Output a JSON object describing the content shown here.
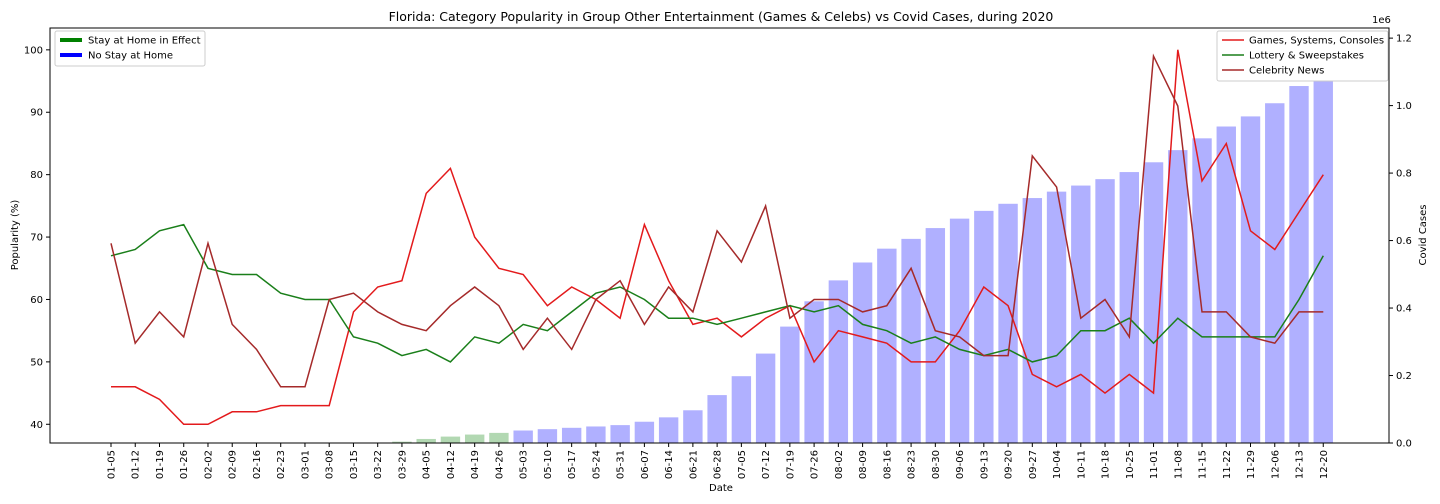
{
  "chart_data": {
    "type": "line",
    "title": "Florida: Category Popularity in Group Other Entertainment (Games & Celebs) vs Covid Cases, during 2020",
    "xlabel": "Date",
    "ylabel": "Popularity (%)",
    "y2label": "Covid Cases",
    "y2_multiplier": "1e6",
    "ylim": [
      37,
      103.5
    ],
    "y2lim": [
      0,
      1.23
    ],
    "yticks": [
      40,
      50,
      60,
      70,
      80,
      90,
      100
    ],
    "y2ticks": [
      "0.0",
      "0.2",
      "0.4",
      "0.6",
      "0.8",
      "1.0",
      "1.2"
    ],
    "categories": [
      "01-05",
      "01-12",
      "01-19",
      "01-26",
      "02-02",
      "02-09",
      "02-16",
      "02-23",
      "03-01",
      "03-08",
      "03-15",
      "03-22",
      "03-29",
      "04-05",
      "04-12",
      "04-19",
      "04-26",
      "05-03",
      "05-10",
      "05-17",
      "05-24",
      "05-31",
      "06-07",
      "06-14",
      "06-21",
      "06-28",
      "07-05",
      "07-12",
      "07-19",
      "07-26",
      "08-02",
      "08-09",
      "08-16",
      "08-23",
      "08-30",
      "09-06",
      "09-13",
      "09-20",
      "09-27",
      "10-04",
      "10-11",
      "10-18",
      "10-25",
      "11-01",
      "11-08",
      "11-15",
      "11-22",
      "11-29",
      "12-06",
      "12-13",
      "12-20"
    ],
    "bars": {
      "name": "Covid Cases",
      "axis": "right",
      "values": [
        0,
        0,
        0,
        0,
        0,
        0,
        0,
        0,
        0,
        0,
        0,
        0.001,
        0.004,
        0.012,
        0.019,
        0.025,
        0.03,
        0.037,
        0.041,
        0.045,
        0.049,
        0.053,
        0.063,
        0.076,
        0.097,
        0.142,
        0.198,
        0.265,
        0.345,
        0.42,
        0.482,
        0.535,
        0.576,
        0.605,
        0.637,
        0.665,
        0.688,
        0.709,
        0.726,
        0.745,
        0.763,
        0.782,
        0.803,
        0.832,
        0.868,
        0.903,
        0.938,
        0.968,
        1.007,
        1.058,
        1.175
      ],
      "colors": {
        "stay_at_home": "#b2d8b2",
        "no_stay_at_home": "#b0b0ff"
      },
      "stay_at_home_categories": [
        "03-29",
        "04-05",
        "04-12",
        "04-19",
        "04-26"
      ]
    },
    "series": [
      {
        "name": "Games, Systems, Consoles",
        "color": "#e31a1c",
        "values": [
          46,
          46,
          44,
          40,
          40,
          42,
          42,
          43,
          43,
          43,
          58,
          62,
          63,
          77,
          81,
          70,
          65,
          64,
          59,
          62,
          60,
          57,
          72,
          63,
          56,
          57,
          54,
          57,
          59,
          50,
          55,
          54,
          53,
          50,
          50,
          55,
          62,
          59,
          48,
          46,
          48,
          45,
          48,
          45,
          100,
          79,
          85,
          71,
          68,
          74,
          80
        ]
      },
      {
        "name": "Lottery & Sweepstakes",
        "color": "#1a7f1a",
        "values": [
          67,
          68,
          71,
          72,
          65,
          64,
          64,
          61,
          60,
          60,
          54,
          53,
          51,
          52,
          50,
          54,
          53,
          56,
          55,
          58,
          61,
          62,
          60,
          57,
          57,
          56,
          57,
          58,
          59,
          58,
          59,
          56,
          55,
          53,
          54,
          52,
          51,
          52,
          50,
          51,
          55,
          55,
          57,
          53,
          57,
          54,
          54,
          54,
          54,
          60,
          67
        ]
      },
      {
        "name": "Celebrity News",
        "color": "#a52a2a",
        "values": [
          69,
          53,
          58,
          54,
          69,
          56,
          52,
          46,
          46,
          60,
          61,
          58,
          56,
          55,
          59,
          62,
          59,
          52,
          57,
          52,
          60,
          63,
          56,
          62,
          58,
          71,
          66,
          75,
          57,
          60,
          60,
          58,
          59,
          65,
          55,
          54,
          51,
          51,
          83,
          78,
          57,
          60,
          54,
          99,
          91,
          58,
          58,
          54,
          53,
          58,
          58
        ]
      }
    ],
    "legend_left": [
      {
        "label": "Stay at Home in Effect",
        "color": "#008000"
      },
      {
        "label": "No Stay at Home",
        "color": "#0000ff"
      }
    ],
    "legend_left_placement": "top-left",
    "legend_right_placement": "top-right",
    "grid": false
  }
}
